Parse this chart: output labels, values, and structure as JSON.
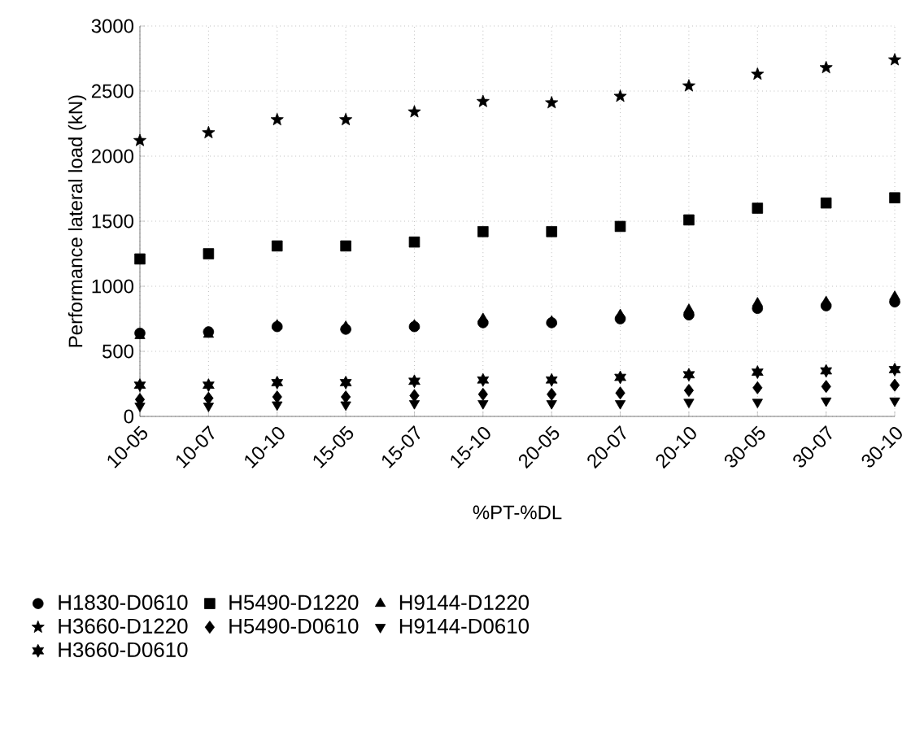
{
  "chart_data": {
    "type": "scatter",
    "xlabel": "%PT-%DL",
    "ylabel": "Performance lateral load (kN)",
    "categories": [
      "10-05",
      "10-07",
      "10-10",
      "15-05",
      "15-07",
      "15-10",
      "20-05",
      "20-07",
      "20-10",
      "30-05",
      "30-07",
      "30-10"
    ],
    "ylim": [
      0,
      3000
    ],
    "yticks": [
      0,
      500,
      1000,
      1500,
      2000,
      2500,
      3000
    ],
    "grid": true,
    "legend": "bottom",
    "series": [
      {
        "name": "H1830-D0610",
        "color": "#000000",
        "marker": "circle",
        "values": [
          640,
          650,
          690,
          670,
          690,
          720,
          720,
          750,
          780,
          830,
          850,
          880
        ]
      },
      {
        "name": "H5490-D1220",
        "color": "#000000",
        "marker": "square",
        "values": [
          1210,
          1250,
          1310,
          1310,
          1340,
          1420,
          1420,
          1460,
          1510,
          1600,
          1640,
          1680
        ]
      },
      {
        "name": "H9144-D1220",
        "color": "#000000",
        "marker": "triangle",
        "values": [
          620,
          630,
          700,
          690,
          700,
          750,
          730,
          780,
          820,
          870,
          880,
          920
        ]
      },
      {
        "name": "H3660-D1220",
        "color": "#000000",
        "marker": "star",
        "values": [
          2120,
          2180,
          2280,
          2280,
          2340,
          2420,
          2410,
          2460,
          2540,
          2630,
          2680,
          2740
        ]
      },
      {
        "name": "H5490-D0610",
        "color": "#000000",
        "marker": "diamond",
        "values": [
          130,
          140,
          150,
          150,
          160,
          170,
          170,
          180,
          200,
          220,
          230,
          240
        ]
      },
      {
        "name": "H9144-D0610",
        "color": "#000000",
        "marker": "triangle-down",
        "values": [
          80,
          80,
          90,
          90,
          100,
          100,
          100,
          100,
          110,
          110,
          120,
          120
        ]
      },
      {
        "name": "H3660-D0610",
        "color": "#000000",
        "marker": "cross",
        "values": [
          240,
          240,
          260,
          260,
          270,
          280,
          280,
          300,
          320,
          340,
          350,
          360
        ]
      }
    ]
  }
}
